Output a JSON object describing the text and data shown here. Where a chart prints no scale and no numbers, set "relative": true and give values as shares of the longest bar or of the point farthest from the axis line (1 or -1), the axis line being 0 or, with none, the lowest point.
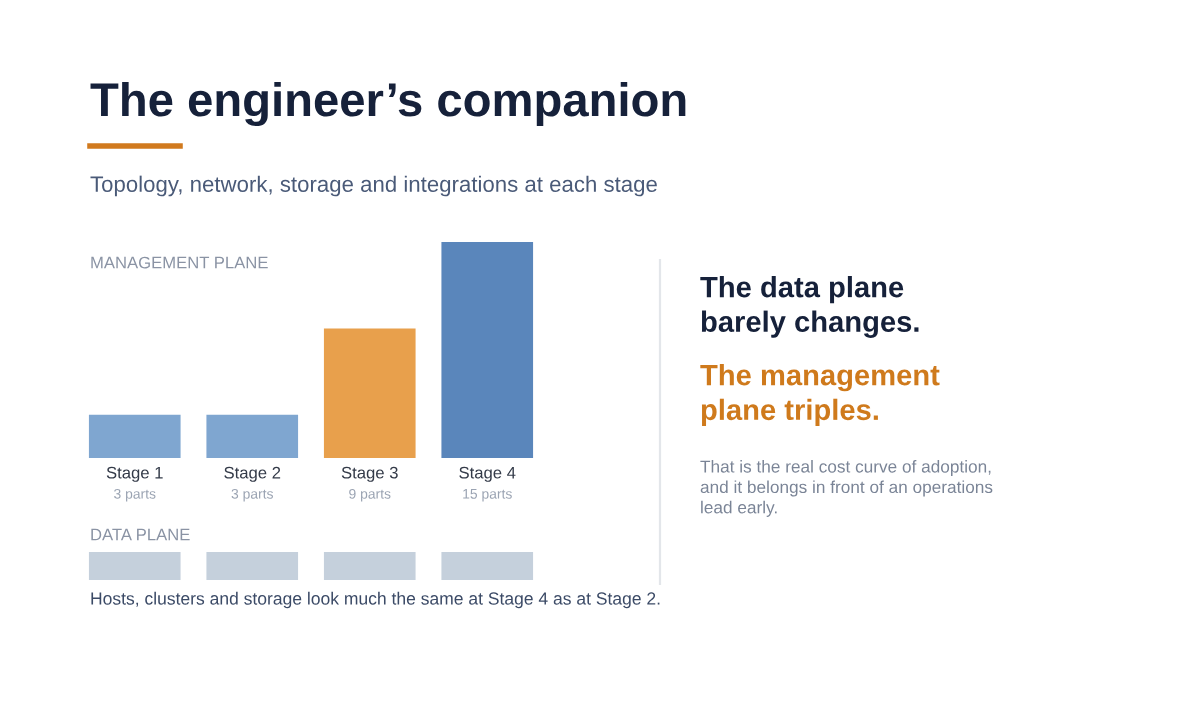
{
  "chart_data": [
    {
      "type": "other",
      "title": "The engineer’s companion",
      "subtitle": "Topology, network, storage and integrations at each stage",
      "annotations": [
        "The data plane\nbarely changes.",
        "The management\nplane triples.",
        "That is the real cost curve of adoption,\nand it belongs in front of an operations\nlead early."
      ]
    },
    {
      "type": "bar",
      "title": "MANAGEMENT PLANE",
      "categories": [
        "Stage 1",
        "Stage 2",
        "Stage 3",
        "Stage 4"
      ],
      "values": [
        3,
        3,
        9,
        15
      ],
      "colors": [
        "#7fa6d0",
        "#7fa6d0",
        "#e8a04c",
        "#5a86bb"
      ],
      "value_labels": [
        "3 parts",
        "3 parts",
        "9 parts",
        "15 parts"
      ]
    },
    {
      "type": "bar",
      "title": "DATA PLANE",
      "categories": [
        null,
        null,
        null,
        null
      ],
      "values": [
        1,
        1,
        1,
        1
      ],
      "color": "#c5d0dc",
      "relative": true,
      "annotations": [
        "Hosts, clusters and storage look much the same at Stage 4 as at Stage 2."
      ]
    }
  ]
}
